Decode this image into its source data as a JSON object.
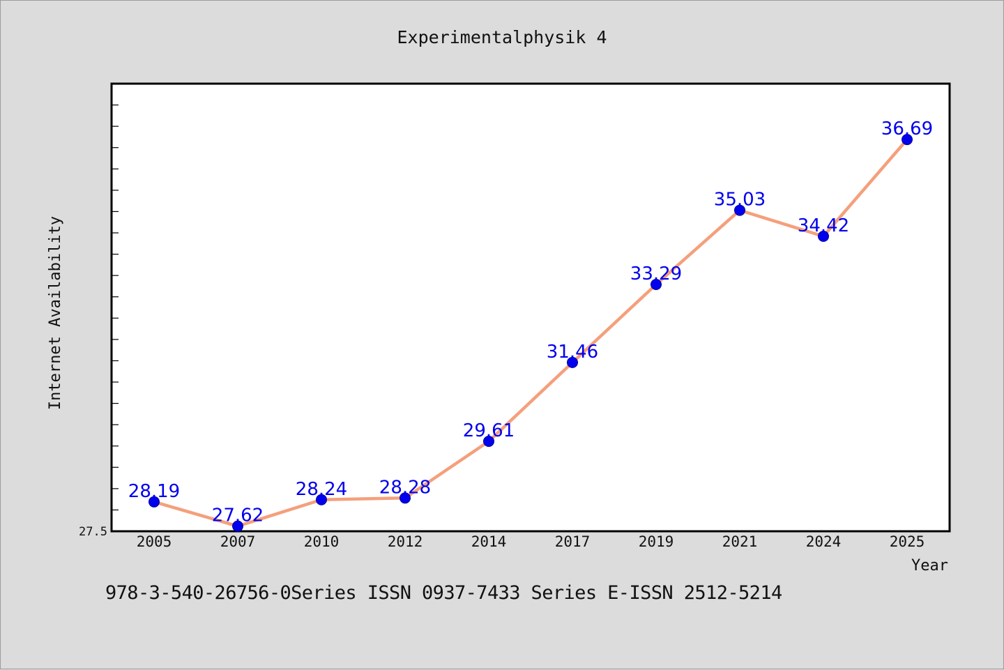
{
  "footer": "978-3-540-26756-0Series ISSN 0937-7433 Series E-ISSN 2512-5214",
  "chart_data": {
    "type": "line",
    "title": "Experimentalphysik 4",
    "xlabel": "Year",
    "ylabel": "Internet Availability",
    "categories": [
      "2005",
      "2007",
      "2010",
      "2012",
      "2014",
      "2017",
      "2019",
      "2021",
      "2024",
      "2025"
    ],
    "series": [
      {
        "values": [
          28.19,
          27.62,
          28.24,
          28.28,
          29.61,
          31.46,
          33.29,
          35.03,
          34.42,
          36.69
        ],
        "labels": [
          "28.19",
          "27.62",
          "28.24",
          "28.28",
          "29.61",
          "31.46",
          "33.29",
          "35.03",
          "34.42",
          "36.69"
        ]
      }
    ],
    "ylim": [
      27.5,
      38.0
    ],
    "y_tick_labels": [
      "27.5"
    ],
    "grid": false,
    "colors": {
      "line": "#f4a07c",
      "marker": "#0000ee",
      "data_label": "#0000ee",
      "plot_background": "#ffffff",
      "page_background": "#dcdcdc"
    }
  }
}
